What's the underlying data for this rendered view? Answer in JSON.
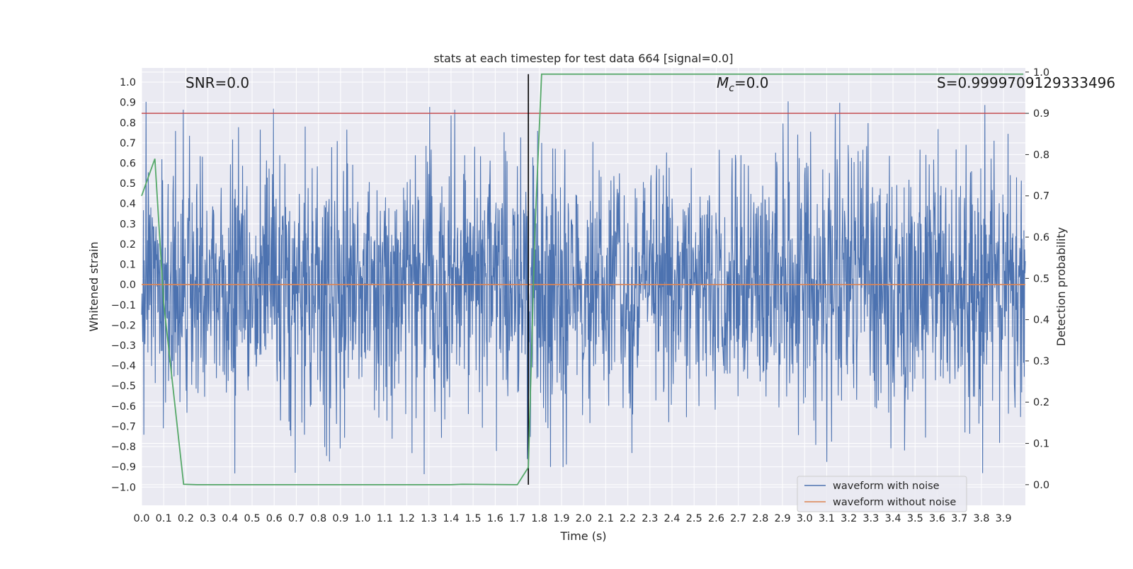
{
  "chart_data": {
    "type": "line",
    "title": "stats at each timestep for test data 664 [signal=0.0]",
    "xlabel": "Time (s)",
    "ylabel_left": "Whitened strain",
    "ylabel_right": "Detection probability",
    "xlim": [
      0.0,
      3.999
    ],
    "ylim_left": [
      -1.09,
      1.07
    ],
    "ylim_right": [
      -0.05,
      1.01
    ],
    "xticks": [
      "0.0",
      "0.1",
      "0.2",
      "0.3",
      "0.4",
      "0.5",
      "0.6",
      "0.7",
      "0.8",
      "0.9",
      "1.0",
      "1.1",
      "1.2",
      "1.3",
      "1.4",
      "1.5",
      "1.6",
      "1.7",
      "1.8",
      "1.9",
      "2.0",
      "2.1",
      "2.2",
      "2.3",
      "2.4",
      "2.5",
      "2.6",
      "2.7",
      "2.8",
      "2.9",
      "3.0",
      "3.1",
      "3.2",
      "3.3",
      "3.4",
      "3.5",
      "3.6",
      "3.7",
      "3.8",
      "3.9"
    ],
    "yticks_left": [
      "1.0",
      "0.9",
      "0.8",
      "0.7",
      "0.6",
      "0.5",
      "0.4",
      "0.3",
      "0.2",
      "0.1",
      "0.0",
      "−0.1",
      "−0.2",
      "−0.3",
      "−0.4",
      "−0.5",
      "−0.6",
      "−0.7",
      "−0.8",
      "−0.9",
      "−1.0"
    ],
    "yticks_right": [
      "1.0",
      "0.9",
      "0.8",
      "0.7",
      "0.6",
      "0.5",
      "0.4",
      "0.3",
      "0.2",
      "0.1",
      "0.0"
    ],
    "grid": true,
    "legend_position": "lower-right",
    "annotations": {
      "snr": "SNR=0.0",
      "mc_symbol": "M",
      "mc_subscript": "c",
      "mc_value": "=0.0",
      "s": "S=0.9999709129333496"
    },
    "series": [
      {
        "name": "waveform with noise",
        "color": "#4c72b0",
        "axis": "left",
        "description_of_values": "whitened noise, roughly uniform spread between about -0.9 and 0.95 across the full time range"
      },
      {
        "name": "waveform without noise",
        "color": "#dd8452",
        "axis": "left",
        "y_constant": 0.0
      },
      {
        "name": "",
        "color": "#55a868",
        "axis": "right",
        "x": [
          0.0,
          0.06,
          0.1,
          0.19,
          0.25,
          1.4,
          1.45,
          1.7,
          1.75,
          1.78,
          1.81,
          3.99
        ],
        "y": [
          0.7,
          0.79,
          0.44,
          0.001,
          0.0,
          0.0,
          0.001,
          0.0,
          0.042,
          0.62,
          0.995,
          0.995
        ]
      }
    ],
    "reference_lines": {
      "threshold_right": 0.9,
      "threshold_color": "#c44e52",
      "vertical_x": 1.75,
      "vertical_color": "#000000"
    },
    "legend": [
      {
        "label": "waveform with noise",
        "color": "#4c72b0"
      },
      {
        "label": "waveform without noise",
        "color": "#dd8452"
      }
    ]
  }
}
